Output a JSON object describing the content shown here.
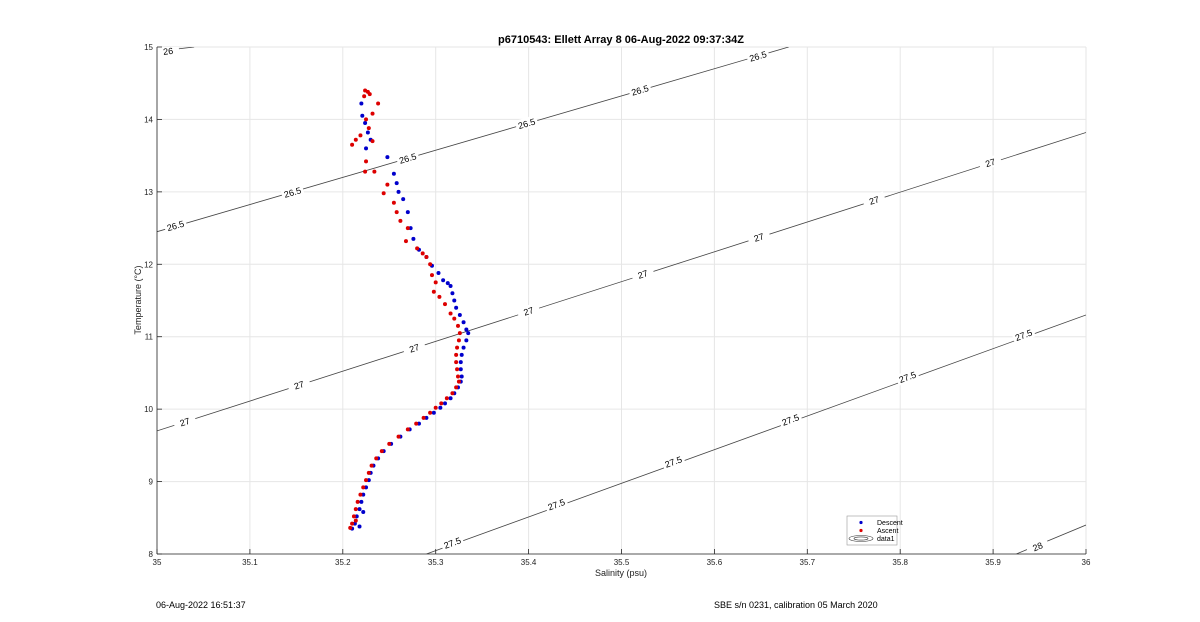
{
  "chart_data": {
    "type": "scatter",
    "title": "p6710543: Ellett Array 8 06-Aug-2022 09:37:34Z",
    "xlabel": "Salinity (psu)",
    "ylabel": "Temperature (°C)",
    "xlim": [
      35,
      36
    ],
    "ylim": [
      8,
      15
    ],
    "xticks": [
      35,
      35.1,
      35.2,
      35.3,
      35.4,
      35.5,
      35.6,
      35.7,
      35.8,
      35.9,
      36
    ],
    "xtick_labels": [
      "35",
      "35.1",
      "35.2",
      "35.3",
      "35.4",
      "35.5",
      "35.6",
      "35.7",
      "35.8",
      "35.9",
      "36"
    ],
    "yticks": [
      8,
      9,
      10,
      11,
      12,
      13,
      14,
      15
    ],
    "ytick_labels": [
      "8",
      "9",
      "10",
      "11",
      "12",
      "13",
      "14",
      "15"
    ],
    "grid": true,
    "legend_position": "bottom-right",
    "legend": [
      "Descent",
      "Ascent",
      "data1"
    ],
    "series": [
      {
        "name": "Descent",
        "color": "#0000cc",
        "points": [
          [
            35.22,
            14.22
          ],
          [
            35.221,
            14.05
          ],
          [
            35.224,
            13.95
          ],
          [
            35.227,
            13.82
          ],
          [
            35.23,
            13.72
          ],
          [
            35.225,
            13.6
          ],
          [
            35.248,
            13.48
          ],
          [
            35.255,
            13.25
          ],
          [
            35.258,
            13.12
          ],
          [
            35.26,
            13.0
          ],
          [
            35.265,
            12.9
          ],
          [
            35.27,
            12.72
          ],
          [
            35.273,
            12.5
          ],
          [
            35.276,
            12.35
          ],
          [
            35.282,
            12.2
          ],
          [
            35.29,
            12.1
          ],
          [
            35.296,
            11.98
          ],
          [
            35.303,
            11.88
          ],
          [
            35.308,
            11.78
          ],
          [
            35.313,
            11.74
          ],
          [
            35.316,
            11.7
          ],
          [
            35.318,
            11.6
          ],
          [
            35.32,
            11.5
          ],
          [
            35.322,
            11.4
          ],
          [
            35.326,
            11.3
          ],
          [
            35.33,
            11.2
          ],
          [
            35.333,
            11.1
          ],
          [
            35.335,
            11.05
          ],
          [
            35.333,
            10.95
          ],
          [
            35.33,
            10.85
          ],
          [
            35.328,
            10.75
          ],
          [
            35.327,
            10.65
          ],
          [
            35.327,
            10.55
          ],
          [
            35.328,
            10.45
          ],
          [
            35.327,
            10.38
          ],
          [
            35.324,
            10.3
          ],
          [
            35.32,
            10.22
          ],
          [
            35.316,
            10.15
          ],
          [
            35.31,
            10.08
          ],
          [
            35.305,
            10.02
          ],
          [
            35.298,
            9.95
          ],
          [
            35.29,
            9.88
          ],
          [
            35.282,
            9.8
          ],
          [
            35.272,
            9.72
          ],
          [
            35.262,
            9.62
          ],
          [
            35.252,
            9.52
          ],
          [
            35.244,
            9.42
          ],
          [
            35.238,
            9.32
          ],
          [
            35.233,
            9.22
          ],
          [
            35.23,
            9.12
          ],
          [
            35.228,
            9.02
          ],
          [
            35.225,
            8.92
          ],
          [
            35.222,
            8.82
          ],
          [
            35.22,
            8.72
          ],
          [
            35.218,
            8.62
          ],
          [
            35.215,
            8.52
          ],
          [
            35.213,
            8.42
          ],
          [
            35.21,
            8.35
          ],
          [
            35.218,
            8.38
          ],
          [
            35.222,
            8.58
          ]
        ]
      },
      {
        "name": "Ascent",
        "color": "#dd0000",
        "points": [
          [
            35.224,
            14.4
          ],
          [
            35.227,
            14.38
          ],
          [
            35.229,
            14.35
          ],
          [
            35.223,
            14.32
          ],
          [
            35.238,
            14.22
          ],
          [
            35.232,
            14.08
          ],
          [
            35.225,
            14.0
          ],
          [
            35.228,
            13.88
          ],
          [
            35.219,
            13.78
          ],
          [
            35.214,
            13.72
          ],
          [
            35.21,
            13.65
          ],
          [
            35.232,
            13.7
          ],
          [
            35.225,
            13.42
          ],
          [
            35.224,
            13.28
          ],
          [
            35.234,
            13.28
          ],
          [
            35.248,
            13.1
          ],
          [
            35.244,
            12.98
          ],
          [
            35.255,
            12.85
          ],
          [
            35.258,
            12.72
          ],
          [
            35.262,
            12.6
          ],
          [
            35.27,
            12.5
          ],
          [
            35.268,
            12.32
          ],
          [
            35.28,
            12.22
          ],
          [
            35.286,
            12.15
          ],
          [
            35.29,
            12.1
          ],
          [
            35.294,
            12.0
          ],
          [
            35.296,
            11.85
          ],
          [
            35.3,
            11.75
          ],
          [
            35.298,
            11.62
          ],
          [
            35.304,
            11.55
          ],
          [
            35.31,
            11.45
          ],
          [
            35.316,
            11.32
          ],
          [
            35.32,
            11.25
          ],
          [
            35.324,
            11.15
          ],
          [
            35.326,
            11.05
          ],
          [
            35.325,
            10.95
          ],
          [
            35.323,
            10.85
          ],
          [
            35.322,
            10.75
          ],
          [
            35.322,
            10.65
          ],
          [
            35.323,
            10.55
          ],
          [
            35.324,
            10.45
          ],
          [
            35.325,
            10.38
          ],
          [
            35.322,
            10.3
          ],
          [
            35.318,
            10.22
          ],
          [
            35.312,
            10.15
          ],
          [
            35.306,
            10.08
          ],
          [
            35.3,
            10.02
          ],
          [
            35.294,
            9.95
          ],
          [
            35.287,
            9.88
          ],
          [
            35.279,
            9.8
          ],
          [
            35.27,
            9.72
          ],
          [
            35.26,
            9.62
          ],
          [
            35.25,
            9.52
          ],
          [
            35.242,
            9.42
          ],
          [
            35.236,
            9.32
          ],
          [
            35.231,
            9.22
          ],
          [
            35.228,
            9.12
          ],
          [
            35.225,
            9.02
          ],
          [
            35.222,
            8.92
          ],
          [
            35.219,
            8.82
          ],
          [
            35.216,
            8.72
          ],
          [
            35.214,
            8.62
          ],
          [
            35.212,
            8.52
          ],
          [
            35.21,
            8.42
          ],
          [
            35.208,
            8.36
          ],
          [
            35.214,
            8.46
          ]
        ]
      }
    ],
    "contours": [
      {
        "level": "26",
        "endpoints": [
          [
            35.0,
            14.94
          ],
          [
            35.04,
            15.0
          ]
        ],
        "labels": [
          [
            35.012,
            14.94
          ]
        ]
      },
      {
        "level": "26.5",
        "endpoints": [
          [
            35.0,
            12.45
          ],
          [
            35.68,
            15.0
          ]
        ],
        "labels": [
          [
            35.02,
            12.53
          ],
          [
            35.146,
            12.99
          ],
          [
            35.27,
            13.46
          ],
          [
            35.398,
            13.94
          ],
          [
            35.52,
            14.4
          ],
          [
            35.647,
            14.87
          ]
        ]
      },
      {
        "level": "27",
        "endpoints": [
          [
            35.0,
            9.7
          ],
          [
            36.0,
            13.82
          ]
        ],
        "labels": [
          [
            35.03,
            9.82
          ],
          [
            35.153,
            10.33
          ],
          [
            35.277,
            10.84
          ],
          [
            35.4,
            11.35
          ],
          [
            35.523,
            11.86
          ],
          [
            35.648,
            12.37
          ],
          [
            35.772,
            12.88
          ],
          [
            35.897,
            13.4
          ]
        ]
      },
      {
        "level": "27.5",
        "endpoints": [
          [
            35.29,
            8.0
          ],
          [
            36.0,
            11.3
          ]
        ],
        "labels": [
          [
            35.318,
            8.15
          ],
          [
            35.43,
            8.68
          ],
          [
            35.556,
            9.27
          ],
          [
            35.682,
            9.85
          ],
          [
            35.808,
            10.44
          ],
          [
            35.933,
            11.02
          ]
        ]
      },
      {
        "level": "28",
        "endpoints": [
          [
            35.925,
            8.0
          ],
          [
            36.0,
            8.4
          ]
        ],
        "labels": [
          [
            35.948,
            8.1
          ]
        ]
      }
    ]
  },
  "footer": {
    "timestamp": "06-Aug-2022 16:51:37",
    "calibration": "SBE s/n 0231, calibration 05 March 2020"
  },
  "colors": {
    "descent": "#0000cc",
    "ascent": "#dd0000",
    "grid": "#e6e6e6",
    "axis": "#262626"
  }
}
